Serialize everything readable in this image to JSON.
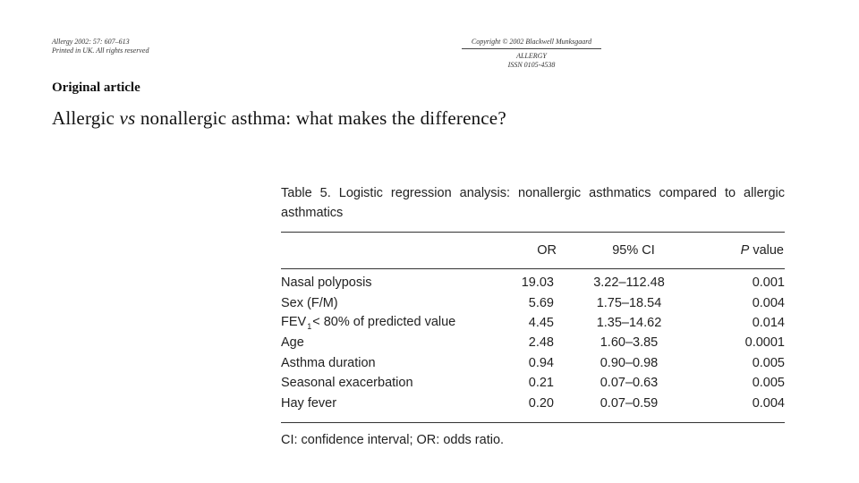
{
  "header": {
    "journal_line1": "Allergy 2002: 57: 607–613",
    "journal_line2": "Printed in UK. All rights reserved",
    "copyright": "Copyright © 2002 Blackwell Munksgaard",
    "journal_name": "ALLERGY",
    "issn": "ISSN 0105-4538"
  },
  "article": {
    "section": "Original article",
    "title_part1": "Allergic ",
    "title_vs": "vs",
    "title_part2": " nonallergic asthma: what makes the difference?"
  },
  "table": {
    "caption_line1": "Table 5. Logistic regression analysis: nonallergic asthmatics compared to allergic",
    "caption_line2": "asthmatics",
    "columns": {
      "or": "OR",
      "ci": "95% CI",
      "p_italic": "P",
      "p_rest": " value"
    },
    "rows": [
      {
        "label": "Nasal polyposis",
        "or": "19.03",
        "ci": "3.22–112.48",
        "p": "0.001"
      },
      {
        "label": "Sex (F/M)",
        "or": "5.69",
        "ci": "1.75–18.54",
        "p": "0.004"
      },
      {
        "label_pre": "FEV",
        "label_sub": "1",
        "label_post": "< 80% of predicted value",
        "or": "4.45",
        "ci": "1.35–14.62",
        "p": "0.014"
      },
      {
        "label": "Age",
        "or": "2.48",
        "ci": "1.60–3.85",
        "p": "0.0001"
      },
      {
        "label": "Asthma duration",
        "or": "0.94",
        "ci": "0.90–0.98",
        "p": "0.005"
      },
      {
        "label": "Seasonal exacerbation",
        "or": "0.21",
        "ci": "0.07–0.63",
        "p": "0.005"
      },
      {
        "label": "Hay fever",
        "or": "0.20",
        "ci": "0.07–0.59",
        "p": "0.004"
      }
    ],
    "footnote": "CI: confidence interval; OR: odds ratio."
  }
}
